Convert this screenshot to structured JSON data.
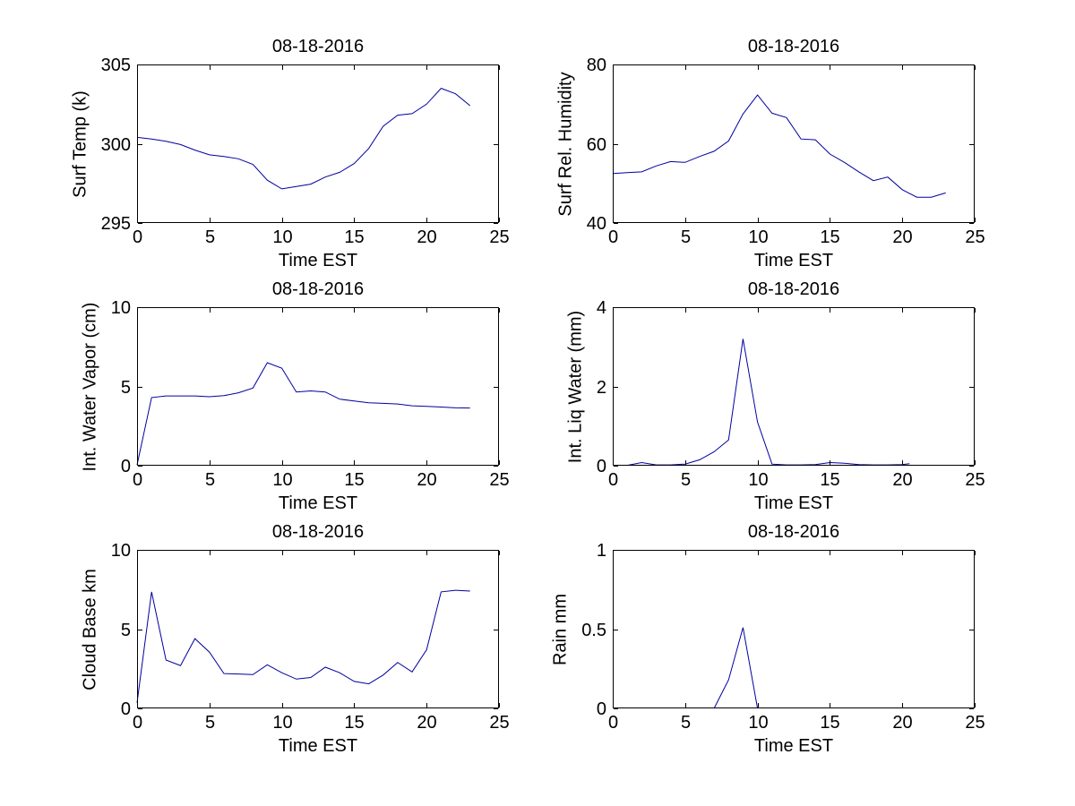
{
  "figure": {
    "background": "#ffffff",
    "line_color": "#0000a0",
    "axis_color": "#000000",
    "date": "08-18-2016"
  },
  "chart_data": [
    {
      "id": "surf-temp",
      "type": "line",
      "title": "08-18-2016",
      "xlabel": "Time EST",
      "ylabel": "Surf Temp (k)",
      "xlim": [
        0,
        25
      ],
      "ylim": [
        295,
        305
      ],
      "xticks": [
        0,
        5,
        10,
        15,
        20,
        25
      ],
      "yticks": [
        295,
        300,
        305
      ],
      "grid": false,
      "legend": null,
      "x": [
        0,
        1,
        2,
        3,
        4,
        5,
        6,
        7,
        8,
        9,
        10,
        11,
        12,
        13,
        14,
        15,
        16,
        17,
        18,
        19,
        20,
        21,
        22,
        23
      ],
      "y": [
        300.4,
        300.3,
        300.15,
        299.95,
        299.6,
        299.3,
        299.2,
        299.05,
        298.7,
        297.7,
        297.15,
        297.3,
        297.45,
        297.9,
        298.2,
        298.75,
        299.7,
        301.1,
        301.8,
        301.9,
        302.5,
        303.5,
        303.15,
        302.4
      ]
    },
    {
      "id": "surf-rel-humidity",
      "type": "line",
      "title": "08-18-2016",
      "xlabel": "Time EST",
      "ylabel": "Surf Rel. Humidity",
      "xlim": [
        0,
        25
      ],
      "ylim": [
        40,
        80
      ],
      "xticks": [
        0,
        5,
        10,
        15,
        20,
        25
      ],
      "yticks": [
        40,
        60,
        80
      ],
      "grid": false,
      "legend": null,
      "x": [
        0,
        1,
        2,
        3,
        4,
        5,
        6,
        7,
        8,
        9,
        10,
        11,
        12,
        13,
        14,
        15,
        16,
        17,
        18,
        19,
        20,
        21,
        22,
        23
      ],
      "y": [
        52.5,
        52.7,
        52.9,
        54.4,
        55.5,
        55.3,
        56.8,
        58.1,
        60.7,
        67.5,
        72.3,
        67.7,
        66.6,
        61.2,
        61.0,
        57.4,
        55.3,
        52.9,
        50.7,
        51.6,
        48.4,
        46.5,
        46.5,
        47.6
      ]
    },
    {
      "id": "int-water-vapor",
      "type": "line",
      "title": "08-18-2016",
      "xlabel": "Time EST",
      "ylabel": "Int. Water Vapor (cm)",
      "xlim": [
        0,
        25
      ],
      "ylim": [
        0,
        10
      ],
      "xticks": [
        0,
        5,
        10,
        15,
        20,
        25
      ],
      "yticks": [
        0,
        5,
        10
      ],
      "grid": false,
      "legend": null,
      "x": [
        0,
        1,
        2,
        3,
        4,
        5,
        6,
        7,
        8,
        9,
        10,
        11,
        12,
        13,
        14,
        15,
        16,
        17,
        18,
        19,
        20,
        21,
        22,
        23
      ],
      "y": [
        0.05,
        4.3,
        4.4,
        4.4,
        4.4,
        4.35,
        4.42,
        4.6,
        4.9,
        6.5,
        6.15,
        4.65,
        4.72,
        4.65,
        4.2,
        4.08,
        3.97,
        3.93,
        3.89,
        3.78,
        3.74,
        3.7,
        3.65,
        3.64
      ]
    },
    {
      "id": "int-liq-water",
      "type": "line",
      "title": "08-18-2016",
      "xlabel": "Time EST",
      "ylabel": "Int. Liq Water (mm)",
      "xlim": [
        0,
        25
      ],
      "ylim": [
        0,
        4
      ],
      "xticks": [
        0,
        5,
        10,
        15,
        20,
        25
      ],
      "yticks": [
        0,
        2,
        4
      ],
      "grid": false,
      "legend": null,
      "x": [
        1,
        2,
        3,
        4,
        5,
        6,
        7,
        8,
        9,
        10,
        11,
        12,
        13,
        14,
        15,
        16,
        17,
        18,
        19,
        20,
        20.5
      ],
      "y": [
        0.01,
        0.08,
        0.02,
        0.02,
        0.04,
        0.15,
        0.35,
        0.65,
        3.2,
        1.1,
        0.04,
        0.02,
        0.02,
        0.03,
        0.08,
        0.06,
        0.03,
        0.02,
        0.02,
        0.03,
        0.05
      ]
    },
    {
      "id": "cloud-base",
      "type": "line",
      "title": "08-18-2016",
      "xlabel": "Time EST",
      "ylabel": "Cloud Base km",
      "xlim": [
        0,
        25
      ],
      "ylim": [
        0,
        10
      ],
      "xticks": [
        0,
        5,
        10,
        15,
        20,
        25
      ],
      "yticks": [
        0,
        5,
        10
      ],
      "grid": false,
      "legend": null,
      "x": [
        0,
        1,
        2,
        3,
        4,
        5,
        6,
        7,
        8,
        9,
        10,
        11,
        12,
        13,
        14,
        15,
        16,
        17,
        18,
        19,
        20,
        21,
        22,
        23
      ],
      "y": [
        0.35,
        7.35,
        3.05,
        2.7,
        4.4,
        3.55,
        2.2,
        2.17,
        2.13,
        2.75,
        2.25,
        1.85,
        1.95,
        2.6,
        2.25,
        1.7,
        1.55,
        2.1,
        2.9,
        2.3,
        3.7,
        7.35,
        7.45,
        7.4
      ]
    },
    {
      "id": "rain",
      "type": "line",
      "title": "08-18-2016",
      "xlabel": "Time EST",
      "ylabel": "Rain mm",
      "xlim": [
        0,
        25
      ],
      "ylim": [
        0,
        1
      ],
      "xticks": [
        0,
        5,
        10,
        15,
        20,
        25
      ],
      "yticks": [
        0,
        0.5,
        1
      ],
      "grid": false,
      "legend": null,
      "x": [
        7,
        8,
        9,
        10
      ],
      "y": [
        0,
        0.18,
        0.51,
        0
      ]
    }
  ]
}
